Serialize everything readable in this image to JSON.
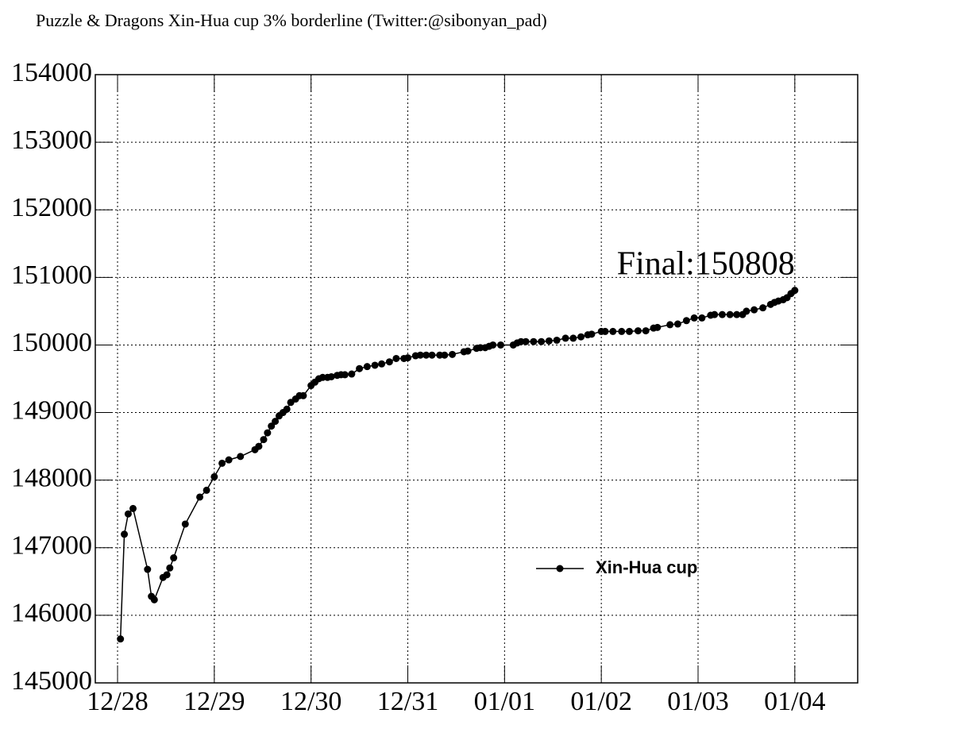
{
  "chart_data": {
    "type": "line",
    "title": "Puzzle & Dragons Xin-Hua cup 3% borderline (Twitter:@sibonyan_pad)",
    "annotation": "Final:150808",
    "legend": "center-right",
    "grid": true,
    "xlim": [
      -0.23,
      7.65
    ],
    "xticks": [
      {
        "value": 0,
        "label": "12/28"
      },
      {
        "value": 1,
        "label": "12/29"
      },
      {
        "value": 2,
        "label": "12/30"
      },
      {
        "value": 3,
        "label": "12/31"
      },
      {
        "value": 4,
        "label": "01/01"
      },
      {
        "value": 5,
        "label": "01/02"
      },
      {
        "value": 6,
        "label": "01/03"
      },
      {
        "value": 7,
        "label": "01/04"
      }
    ],
    "ylim": [
      145000,
      154000
    ],
    "yticks": [
      145000,
      146000,
      147000,
      148000,
      149000,
      150000,
      151000,
      152000,
      153000,
      154000
    ],
    "x": [
      0.03,
      0.07,
      0.11,
      0.16,
      0.31,
      0.35,
      0.38,
      0.47,
      0.51,
      0.54,
      0.58,
      0.7,
      0.85,
      0.92,
      1.0,
      1.08,
      1.15,
      1.27,
      1.42,
      1.46,
      1.51,
      1.55,
      1.59,
      1.63,
      1.67,
      1.71,
      1.75,
      1.79,
      1.84,
      1.88,
      1.92,
      2.0,
      2.04,
      2.08,
      2.12,
      2.17,
      2.21,
      2.27,
      2.31,
      2.35,
      2.42,
      2.5,
      2.58,
      2.66,
      2.73,
      2.81,
      2.88,
      2.96,
      3.0,
      3.08,
      3.13,
      3.19,
      3.25,
      3.33,
      3.38,
      3.46,
      3.58,
      3.62,
      3.71,
      3.75,
      3.8,
      3.84,
      3.88,
      3.96,
      4.09,
      4.13,
      4.17,
      4.22,
      4.3,
      4.38,
      4.46,
      4.54,
      4.63,
      4.71,
      4.79,
      4.86,
      4.9,
      5.0,
      5.04,
      5.12,
      5.21,
      5.29,
      5.38,
      5.46,
      5.54,
      5.58,
      5.71,
      5.79,
      5.88,
      5.96,
      6.04,
      6.13,
      6.17,
      6.25,
      6.33,
      6.4,
      6.46,
      6.5,
      6.58,
      6.67,
      6.75,
      6.79,
      6.83,
      6.88,
      6.92,
      6.96,
      7.0
    ],
    "series": [
      {
        "name": "Xin-Hua cup",
        "color": "#000000",
        "values": [
          145650,
          147200,
          147500,
          147580,
          146680,
          146280,
          146230,
          146560,
          146600,
          146700,
          146850,
          147350,
          147750,
          147850,
          148050,
          148250,
          148300,
          148350,
          148450,
          148500,
          148600,
          148700,
          148800,
          148870,
          148950,
          149000,
          149050,
          149150,
          149200,
          149250,
          149250,
          149400,
          149450,
          149500,
          149520,
          149520,
          149530,
          149550,
          149560,
          149560,
          149570,
          149650,
          149680,
          149700,
          149720,
          149750,
          149800,
          149800,
          149810,
          149840,
          149850,
          149850,
          149850,
          149850,
          149850,
          149860,
          149900,
          149910,
          149950,
          149960,
          149960,
          149980,
          150000,
          150000,
          150000,
          150030,
          150050,
          150050,
          150050,
          150050,
          150060,
          150070,
          150100,
          150100,
          150120,
          150150,
          150160,
          150200,
          150200,
          150200,
          150200,
          150200,
          150210,
          150210,
          150250,
          150260,
          150300,
          150310,
          150360,
          150400,
          150400,
          150440,
          150450,
          150450,
          150450,
          150450,
          150450,
          150500,
          150520,
          150550,
          150600,
          150630,
          150650,
          150670,
          150700,
          150760,
          150808
        ]
      }
    ]
  }
}
